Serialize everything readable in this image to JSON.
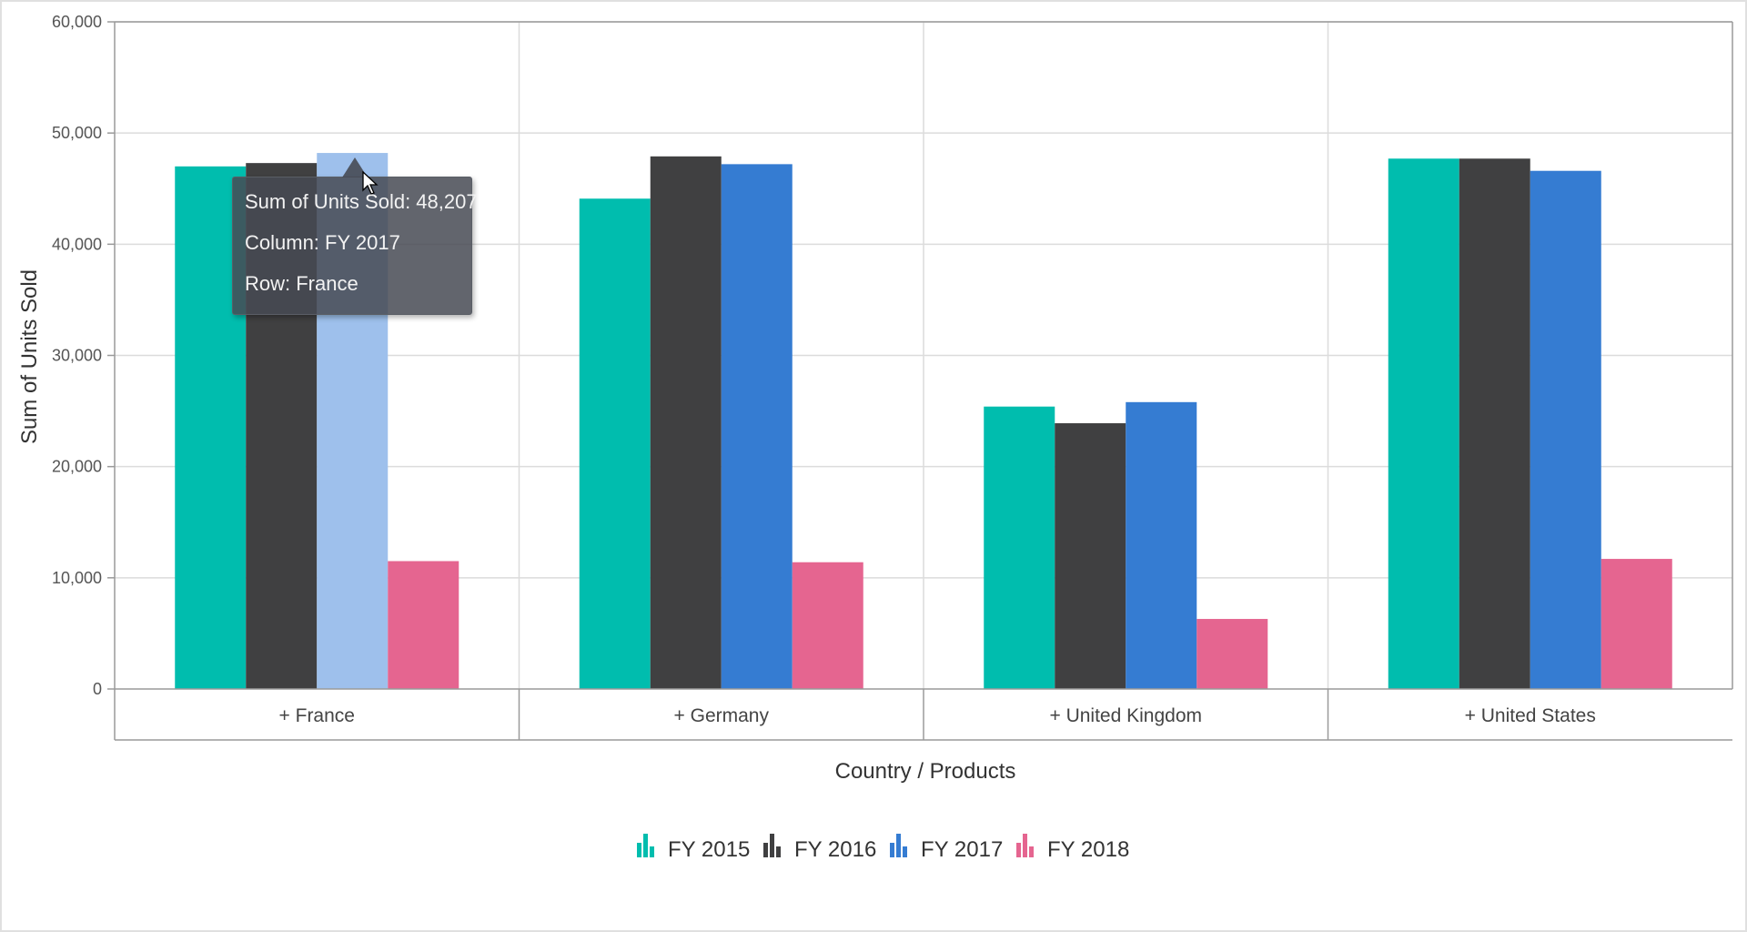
{
  "chart_data": {
    "type": "bar",
    "title": "",
    "xlabel": "Country / Products",
    "ylabel": "Sum of Units Sold",
    "ylim": [
      0,
      60000
    ],
    "yticks": [
      0,
      10000,
      20000,
      30000,
      40000,
      50000,
      60000
    ],
    "ytick_labels": [
      "0",
      "10,000",
      "20,000",
      "30,000",
      "40,000",
      "50,000",
      "60,000"
    ],
    "categories": [
      "+ France",
      "+ Germany",
      "+ United Kingdom",
      "+ United States"
    ],
    "series": [
      {
        "name": "FY 2015",
        "color": "#00BDAE",
        "values": [
          47000,
          44100,
          25400,
          47700
        ]
      },
      {
        "name": "FY 2016",
        "color": "#404041",
        "values": [
          47300,
          47900,
          23900,
          47700
        ]
      },
      {
        "name": "FY 2017",
        "color": "#357CD2",
        "values": [
          48207,
          47200,
          25800,
          46600
        ]
      },
      {
        "name": "FY 2018",
        "color": "#E56590",
        "values": [
          11500,
          11400,
          6300,
          11700
        ]
      }
    ],
    "highlighted": {
      "series": 2,
      "category": 0,
      "color": "#9EC0EC"
    },
    "grid": true,
    "legend_position": "bottom-center"
  },
  "tooltip": {
    "line1": "Sum of Units Sold: 48,207",
    "line2": "Column: FY 2017",
    "line3": "Row: France"
  }
}
